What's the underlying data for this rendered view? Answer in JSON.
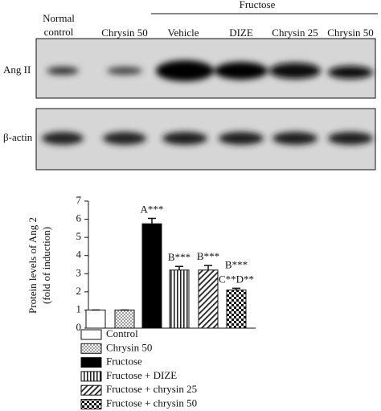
{
  "blot": {
    "group_label": "Fructose",
    "lanes": [
      "Normal control",
      "Chrysin 50",
      "Vehicle",
      "DIZE",
      "Chrysin 25",
      "Chrysin 50"
    ],
    "row_labels": [
      "Ang II",
      "β-actin"
    ]
  },
  "chart_data": {
    "type": "bar",
    "y_label": [
      "Protein levels of Ang 2",
      "(fold of induction)"
    ],
    "categories": [
      "Control",
      "Chrysin 50",
      "Fructose",
      "Fructose + DIZE",
      "Fructose + chrysin 25",
      "Fructose + chrysin 50"
    ],
    "values": [
      1,
      1,
      5.75,
      3.2,
      3.2,
      2.1
    ],
    "errors": [
      0,
      0,
      0.3,
      0.2,
      0.25,
      0.1
    ],
    "patterns": [
      "none",
      "dots",
      "solid",
      "vertical",
      "diagonal",
      "checker"
    ],
    "annotations": [
      null,
      null,
      [
        "A***"
      ],
      [
        "B***"
      ],
      [
        "B***"
      ],
      [
        "B***",
        "C**D**"
      ]
    ],
    "ylim": [
      0,
      7
    ],
    "yticks": [
      0,
      1,
      2,
      3,
      4,
      5,
      6,
      7
    ]
  }
}
